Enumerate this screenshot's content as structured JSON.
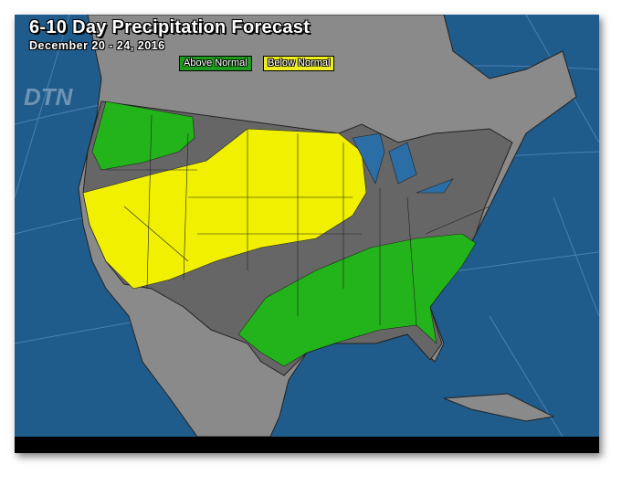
{
  "title": "6-10 Day Precipitation Forecast",
  "subtitle": "December 20 - 24, 2016",
  "legend": [
    {
      "label": "Above Normal",
      "color": "#22b41a"
    },
    {
      "label": "Below Normal",
      "color": "#f0f000"
    }
  ],
  "logo": "DTN",
  "colors": {
    "ocean": "#1f5c8c",
    "land": "#8a8a8a",
    "us_normal": "#666666",
    "above": "#22b41a",
    "below": "#f0f000",
    "lakes": "#2a6ea5"
  }
}
